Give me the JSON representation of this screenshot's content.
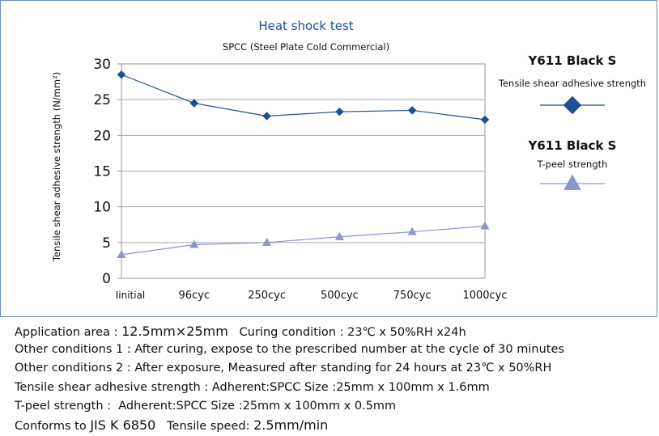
{
  "chart_data": {
    "type": "line",
    "title": "Heat shock test",
    "subtitle": "SPCC (Steel Plate Cold Commercial)",
    "ylabel": "Tensile shear adhesive strength (N/mm²)",
    "xlabel": "",
    "categories": [
      "Iinitial",
      "96cyc",
      "250cyc",
      "500cyc",
      "750cyc",
      "1000cyc"
    ],
    "ylim": [
      0,
      30
    ],
    "yticks": [
      0,
      5,
      10,
      15,
      20,
      25,
      30
    ],
    "grid": "horizontal",
    "legend_position": "right",
    "series": [
      {
        "name": "Y611 Black S",
        "sublabel": "Tensile shear adhesive strength",
        "marker": "diamond",
        "color": "#1f4e96",
        "values": [
          28.5,
          24.5,
          22.7,
          23.3,
          23.5,
          22.2
        ]
      },
      {
        "name": "Y611 Black S",
        "sublabel": "T-peel strength",
        "marker": "triangle",
        "color": "#8a97cf",
        "values": [
          3.3,
          4.7,
          5.0,
          5.8,
          6.5,
          7.3
        ]
      }
    ]
  },
  "notes": {
    "line1_label": "Application area : ",
    "line1_area": "12.5mm×25mm",
    "line1_rest": "   Curing condition : 23℃ x 50%RH x24h",
    "line2": "Other conditions 1 : After curing, expose to the prescribed number at the cycle of 30 minutes",
    "line3": "Other conditions 2 : After exposure, Measured after standing for 24 hours at 23℃ x 50%RH",
    "line4": "Tensile shear adhesive strength : Adherent:SPCC Size :25mm x 100mm x 1.6mm",
    "line5": "T-peel strength :  Adherent:SPCC Size :25mm x 100mm x 0.5mm",
    "line6_label": "Conforms to ",
    "line6_std": "JIS K 6850",
    "line6_mid": "   Tensile speed: ",
    "line6_speed": "2.5mm/min"
  }
}
